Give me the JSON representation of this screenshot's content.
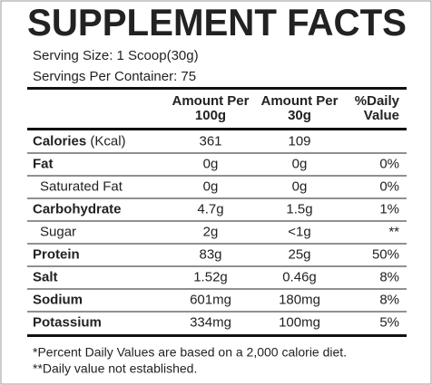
{
  "title": "SUPPLEMENT FACTS",
  "serving_size": "Serving Size: 1 Scoop(30g)",
  "servings_per_container": "Servings Per Container: 75",
  "header": [
    [
      "Amount Per",
      "100g"
    ],
    [
      "Amount Per",
      "30g"
    ],
    [
      "%Daily",
      "Value"
    ]
  ],
  "rows": [
    {
      "label": "Calories",
      "unit": "(Kcal)",
      "per_100g": "361",
      "per_30g": "109",
      "daily": null,
      "sub": false
    },
    {
      "label": "Fat",
      "unit": null,
      "per_100g": "0g",
      "per_30g": "0g",
      "daily": "0%",
      "sub": false
    },
    {
      "label": "Saturated Fat",
      "unit": null,
      "per_100g": "0g",
      "per_30g": "0g",
      "daily": "0%",
      "sub": true
    },
    {
      "label": "Carbohydrate",
      "unit": null,
      "per_100g": "4.7g",
      "per_30g": "1.5g",
      "daily": "1%",
      "sub": false
    },
    {
      "label": "Sugar",
      "unit": null,
      "per_100g": "2g",
      "per_30g": "<1g",
      "daily": "**",
      "sub": true
    },
    {
      "label": "Protein",
      "unit": null,
      "per_100g": "83g",
      "per_30g": "25g",
      "daily": "50%",
      "sub": false
    },
    {
      "label": "Salt",
      "unit": null,
      "per_100g": "1.52g",
      "per_30g": "0.46g",
      "daily": "8%",
      "sub": false
    },
    {
      "label": "Sodium",
      "unit": null,
      "per_100g": "601mg",
      "per_30g": "180mg",
      "daily": "8%",
      "sub": false
    },
    {
      "label": "Potassium",
      "unit": null,
      "per_100g": "334mg",
      "per_30g": "100mg",
      "daily": "5%",
      "sub": false
    }
  ],
  "footnotes": [
    "*Percent Daily Values are based on a 2,000 calorie diet.",
    "**Daily value not established."
  ]
}
